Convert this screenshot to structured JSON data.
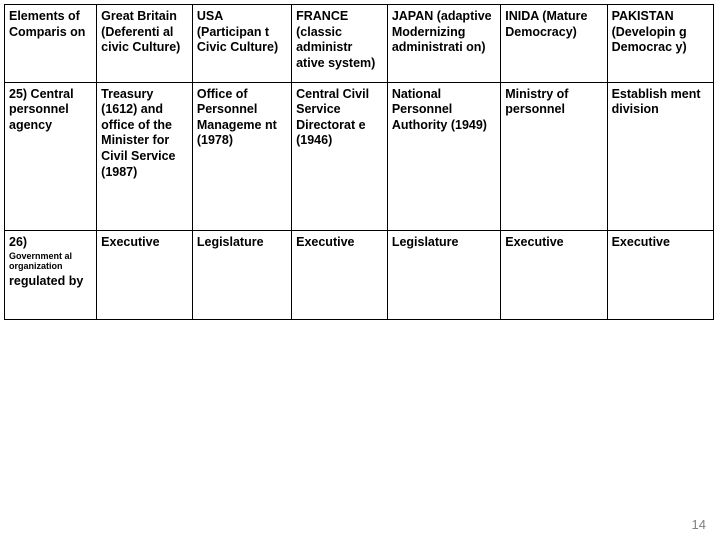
{
  "table": {
    "columns": [
      "Elements of Comparis on",
      "Great Britain (Deferenti al civic Culture)",
      "USA (Participan t Civic Culture)",
      "FRANCE (classic administr ative system)",
      "JAPAN (adaptive Modernizing administrati on)",
      "INIDA (Mature Democracy)",
      "PAKISTAN (Developin g Democrac y)"
    ],
    "rows": [
      {
        "label_top": "25) Central personnel agency",
        "cells": [
          "Treasury (1612) and office of the Minister for Civil Service (1987)",
          "Office of Personnel Manageme nt (1978)",
          "Central Civil Service Directorat e (1946)",
          "National Personnel Authority (1949)",
          "Ministry of personnel",
          "Establish ment division"
        ]
      },
      {
        "label_top": "26)",
        "label_small": "Government al organization",
        "label_bottom": "regulated by",
        "cells": [
          "Executive",
          "Legislature",
          "Executive",
          "Legislature",
          "Executive",
          "Executive"
        ]
      }
    ]
  },
  "page_number": "14",
  "colors": {
    "border": "#000000",
    "text": "#000000",
    "page_num": "#808080",
    "background": "#ffffff"
  },
  "font": {
    "family": "Arial",
    "cell_size_pt": 12.5,
    "small_size_pt": 9,
    "weight": "bold"
  }
}
